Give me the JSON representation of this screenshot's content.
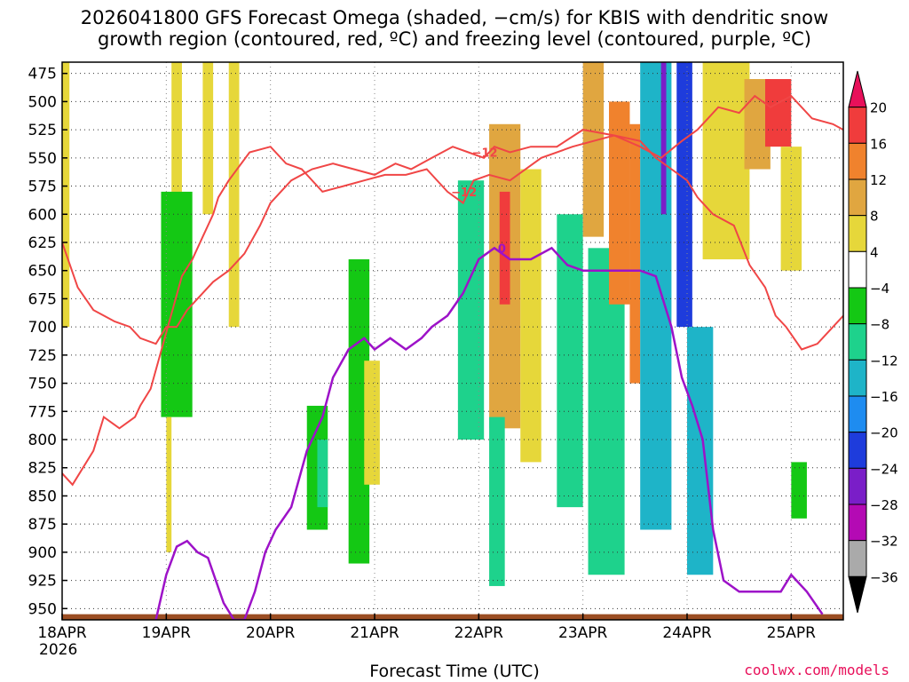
{
  "title_line1": "2026041800 GFS Forecast Omega (shaded, −cm/s) for KBIS with dendritic snow",
  "title_line2": "growth region (contoured, red, ºC) and freezing level (contoured, purple, ºC)",
  "credit": "coolwx.com/models",
  "chart_data": {
    "type": "heatmap",
    "title": "2026041800 GFS Forecast Omega (shaded, −cm/s) for KBIS with dendritic snow growth region (contoured, red, ºC) and freezing level (contoured, purple, ºC)",
    "xlabel": "Forecast Time (UTC)",
    "x_year_label": "2026",
    "x_ticks": [
      "18APR",
      "19APR",
      "20APR",
      "21APR",
      "22APR",
      "23APR",
      "24APR",
      "25APR"
    ],
    "xlim_days_from_18APR": [
      0,
      7.5
    ],
    "y_ticks": [
      475,
      500,
      525,
      550,
      575,
      600,
      625,
      650,
      675,
      700,
      725,
      750,
      775,
      800,
      825,
      850,
      875,
      900,
      925,
      950
    ],
    "ylim": [
      960,
      465
    ],
    "grid": true,
    "colorbar": {
      "labels": [
        "20",
        "16",
        "12",
        "8",
        "4",
        "−4",
        "−8",
        "−12",
        "−16",
        "−20",
        "−24",
        "−28",
        "−32",
        "−36"
      ],
      "bands": [
        {
          "range": ">20",
          "color": "#e8105a"
        },
        {
          "range": "16 to 20",
          "color": "#f03c3c"
        },
        {
          "range": "12 to 16",
          "color": "#f0822d"
        },
        {
          "range": "8 to 12",
          "color": "#e0a640"
        },
        {
          "range": "4 to 8",
          "color": "#e6d73a"
        },
        {
          "range": "-4 to 4",
          "color": "#ffffff"
        },
        {
          "range": "-8 to -4",
          "color": "#14c814"
        },
        {
          "range": "-12 to -8",
          "color": "#1ed28c"
        },
        {
          "range": "-16 to -12",
          "color": "#1eb4c8"
        },
        {
          "range": "-20 to -16",
          "color": "#1e8cf0"
        },
        {
          "range": "-24 to -20",
          "color": "#1e3cdc"
        },
        {
          "range": "-28 to -24",
          "color": "#7a1ec8"
        },
        {
          "range": "-32 to -28",
          "color": "#b40ab4"
        },
        {
          "range": "-36 to -32",
          "color": "#aaaaaa"
        },
        {
          "range": "<-36",
          "color": "#000000"
        }
      ]
    },
    "omega_regions": [
      {
        "x": [
          0.0,
          0.07
        ],
        "p": [
          465,
          700
        ],
        "value": 6
      },
      {
        "x": [
          1.05,
          1.15
        ],
        "p": [
          465,
          620
        ],
        "value": 6
      },
      {
        "x": [
          1.35,
          1.45
        ],
        "p": [
          465,
          600
        ],
        "value": 5
      },
      {
        "x": [
          0.95,
          1.25
        ],
        "p": [
          580,
          780
        ],
        "value": -7
      },
      {
        "x": [
          1.0,
          1.05
        ],
        "p": [
          780,
          900
        ],
        "value": 6
      },
      {
        "x": [
          1.6,
          1.7
        ],
        "p": [
          465,
          700
        ],
        "value": 5
      },
      {
        "x": [
          2.35,
          2.55
        ],
        "p": [
          770,
          880
        ],
        "value": -7
      },
      {
        "x": [
          2.45,
          2.55
        ],
        "p": [
          800,
          860
        ],
        "value": -10
      },
      {
        "x": [
          2.75,
          2.95
        ],
        "p": [
          640,
          910
        ],
        "value": -7
      },
      {
        "x": [
          2.9,
          3.05
        ],
        "p": [
          730,
          840
        ],
        "value": 5
      },
      {
        "x": [
          3.8,
          4.05
        ],
        "p": [
          570,
          800
        ],
        "value": -8
      },
      {
        "x": [
          4.1,
          4.4
        ],
        "p": [
          520,
          790
        ],
        "value": 9
      },
      {
        "x": [
          4.2,
          4.3
        ],
        "p": [
          580,
          680
        ],
        "value": 20
      },
      {
        "x": [
          4.1,
          4.25
        ],
        "p": [
          780,
          930
        ],
        "value": -9
      },
      {
        "x": [
          4.4,
          4.6
        ],
        "p": [
          560,
          820
        ],
        "value": 5
      },
      {
        "x": [
          4.75,
          5.0
        ],
        "p": [
          600,
          860
        ],
        "value": -9
      },
      {
        "x": [
          5.0,
          5.2
        ],
        "p": [
          465,
          620
        ],
        "value": 8
      },
      {
        "x": [
          5.05,
          5.4
        ],
        "p": [
          630,
          920
        ],
        "value": -11
      },
      {
        "x": [
          5.25,
          5.45
        ],
        "p": [
          500,
          680
        ],
        "value": 12
      },
      {
        "x": [
          5.45,
          5.55
        ],
        "p": [
          520,
          750
        ],
        "value": 14
      },
      {
        "x": [
          5.55,
          5.85
        ],
        "p": [
          465,
          880
        ],
        "value": -13
      },
      {
        "x": [
          5.75,
          5.8
        ],
        "p": [
          465,
          600
        ],
        "value": -25
      },
      {
        "x": [
          5.9,
          6.05
        ],
        "p": [
          465,
          700
        ],
        "value": -20
      },
      {
        "x": [
          6.0,
          6.25
        ],
        "p": [
          700,
          920
        ],
        "value": -12
      },
      {
        "x": [
          6.15,
          6.6
        ],
        "p": [
          465,
          640
        ],
        "value": 5
      },
      {
        "x": [
          6.55,
          6.8
        ],
        "p": [
          480,
          560
        ],
        "value": 10
      },
      {
        "x": [
          6.75,
          7.0
        ],
        "p": [
          480,
          540
        ],
        "value": 17
      },
      {
        "x": [
          6.9,
          7.1
        ],
        "p": [
          540,
          650
        ],
        "value": 7
      },
      {
        "x": [
          7.0,
          7.15
        ],
        "p": [
          820,
          870
        ],
        "value": -6
      }
    ],
    "contour_labels_red": [
      "−18",
      "−12"
    ],
    "contour_labels_purple": [
      "0"
    ],
    "series": [
      {
        "name": "−12",
        "kind": "dgz",
        "x": [
          0.0,
          0.1,
          0.2,
          0.3,
          0.4,
          0.55,
          0.7,
          0.75,
          0.85,
          1.0,
          1.15,
          1.25,
          1.35,
          1.45,
          1.5,
          1.6,
          1.8,
          2.0,
          2.15,
          2.3,
          2.5,
          2.7,
          2.9,
          3.1,
          3.3,
          3.5,
          3.7,
          3.85,
          3.95,
          4.1,
          4.3,
          4.6,
          4.9,
          5.1,
          5.3,
          5.55,
          5.75,
          5.95,
          6.1,
          6.2,
          6.3,
          6.5,
          6.6,
          6.65,
          6.8,
          7.0,
          7.2,
          7.4,
          7.5
        ],
        "y": [
          830,
          840,
          825,
          810,
          780,
          790,
          780,
          770,
          755,
          705,
          655,
          640,
          620,
          600,
          585,
          570,
          545,
          540,
          555,
          560,
          580,
          575,
          570,
          565,
          565,
          560,
          580,
          590,
          570,
          565,
          570,
          550,
          540,
          535,
          530,
          540,
          550,
          535,
          525,
          515,
          505,
          510,
          500,
          495,
          505,
          495,
          515,
          520,
          525
        ]
      },
      {
        "name": "−12",
        "kind": "dgz-lower",
        "x": [
          0.0,
          0.15,
          0.3,
          0.5,
          0.65,
          0.75,
          0.9,
          1.0,
          1.1,
          1.2,
          1.3,
          1.45,
          1.6,
          1.75,
          1.9,
          2.0,
          2.2,
          2.4,
          2.6,
          2.8,
          3.0,
          3.2,
          3.35,
          3.55,
          3.75,
          3.9,
          4.05,
          4.15,
          4.3,
          4.5,
          4.75,
          5.0,
          5.3,
          5.55,
          5.7,
          5.85,
          6.0,
          6.1,
          6.25,
          6.45,
          6.6,
          6.75,
          6.85,
          6.95,
          7.1,
          7.25,
          7.5
        ],
        "y": [
          625,
          665,
          685,
          695,
          700,
          710,
          715,
          700,
          700,
          685,
          675,
          660,
          650,
          635,
          610,
          590,
          570,
          560,
          555,
          560,
          565,
          555,
          560,
          550,
          540,
          545,
          550,
          540,
          545,
          540,
          540,
          525,
          530,
          535,
          550,
          560,
          570,
          585,
          600,
          610,
          645,
          665,
          690,
          700,
          720,
          715,
          690
        ]
      },
      {
        "name": "0",
        "kind": "freezing",
        "x": [
          0.9,
          1.0,
          1.1,
          1.2,
          1.3,
          1.4,
          1.55,
          1.65,
          1.75,
          1.85,
          1.95,
          2.05,
          2.2,
          2.35,
          2.5,
          2.6,
          2.75,
          2.9,
          3.0,
          3.15,
          3.3,
          3.45,
          3.55,
          3.7,
          3.85,
          4.0,
          4.15,
          4.3,
          4.5,
          4.7,
          4.85,
          5.0,
          5.15,
          5.35,
          5.55,
          5.7,
          5.85,
          5.95,
          6.05,
          6.15,
          6.25,
          6.35,
          6.5,
          6.6,
          6.75,
          6.9,
          7.0,
          7.15,
          7.3
        ],
        "y": [
          960,
          920,
          895,
          890,
          900,
          905,
          945,
          960,
          960,
          935,
          900,
          880,
          860,
          810,
          780,
          745,
          720,
          710,
          720,
          710,
          720,
          710,
          700,
          690,
          670,
          640,
          630,
          640,
          640,
          630,
          645,
          650,
          650,
          650,
          650,
          655,
          700,
          745,
          770,
          800,
          880,
          925,
          935,
          935,
          935,
          935,
          920,
          935,
          955
        ]
      }
    ]
  }
}
